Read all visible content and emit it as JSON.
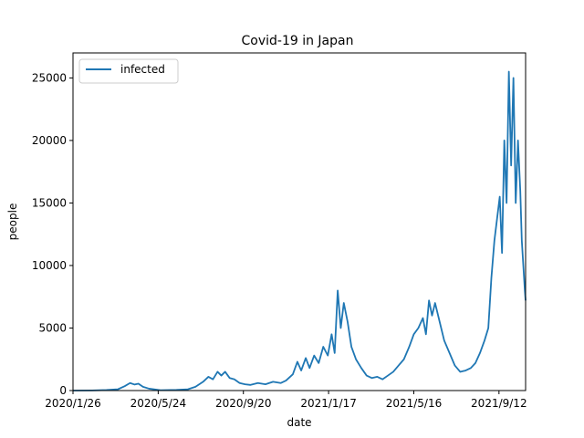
{
  "chart_data": {
    "type": "line",
    "title": "Covid-19 in Japan",
    "xlabel": "date",
    "ylabel": "people",
    "x_tick_labels": [
      "2020/1/26",
      "2020/5/24",
      "2020/9/20",
      "2021/1/17",
      "2021/5/16",
      "2021/9/12"
    ],
    "y_ticks": [
      0,
      5000,
      10000,
      15000,
      20000,
      25000
    ],
    "y_tick_labels": [
      "0",
      "5000",
      "10000",
      "15000",
      "20000",
      "25000"
    ],
    "xlim": [
      "2020-01-26",
      "2021-09-12"
    ],
    "ylim": [
      0,
      27000
    ],
    "grid": false,
    "legend": "top-left",
    "series": [
      {
        "name": "infected",
        "color": "#1f77b4",
        "points": [
          [
            "2020-01-26",
            0
          ],
          [
            "2020-02-20",
            10
          ],
          [
            "2020-03-10",
            40
          ],
          [
            "2020-03-25",
            100
          ],
          [
            "2020-04-03",
            350
          ],
          [
            "2020-04-10",
            600
          ],
          [
            "2020-04-16",
            480
          ],
          [
            "2020-04-21",
            550
          ],
          [
            "2020-04-27",
            300
          ],
          [
            "2020-05-05",
            150
          ],
          [
            "2020-05-20",
            30
          ],
          [
            "2020-06-10",
            50
          ],
          [
            "2020-06-25",
            100
          ],
          [
            "2020-07-05",
            300
          ],
          [
            "2020-07-15",
            700
          ],
          [
            "2020-07-22",
            1100
          ],
          [
            "2020-07-28",
            900
          ],
          [
            "2020-08-03",
            1500
          ],
          [
            "2020-08-08",
            1200
          ],
          [
            "2020-08-13",
            1500
          ],
          [
            "2020-08-19",
            1000
          ],
          [
            "2020-08-25",
            900
          ],
          [
            "2020-09-01",
            600
          ],
          [
            "2020-09-08",
            500
          ],
          [
            "2020-09-15",
            450
          ],
          [
            "2020-09-25",
            600
          ],
          [
            "2020-10-05",
            500
          ],
          [
            "2020-10-15",
            700
          ],
          [
            "2020-10-25",
            600
          ],
          [
            "2020-11-01",
            800
          ],
          [
            "2020-11-10",
            1300
          ],
          [
            "2020-11-16",
            2300
          ],
          [
            "2020-11-21",
            1600
          ],
          [
            "2020-11-27",
            2600
          ],
          [
            "2020-12-02",
            1800
          ],
          [
            "2020-12-08",
            2800
          ],
          [
            "2020-12-14",
            2200
          ],
          [
            "2020-12-20",
            3500
          ],
          [
            "2020-12-26",
            2800
          ],
          [
            "2020-12-31",
            4500
          ],
          [
            "2021-01-04",
            3000
          ],
          [
            "2021-01-08",
            8000
          ],
          [
            "2021-01-12",
            5000
          ],
          [
            "2021-01-16",
            7000
          ],
          [
            "2021-01-21",
            5500
          ],
          [
            "2021-01-26",
            3500
          ],
          [
            "2021-02-01",
            2500
          ],
          [
            "2021-02-08",
            1800
          ],
          [
            "2021-02-15",
            1200
          ],
          [
            "2021-02-22",
            1000
          ],
          [
            "2021-03-01",
            1100
          ],
          [
            "2021-03-08",
            900
          ],
          [
            "2021-03-15",
            1200
          ],
          [
            "2021-03-22",
            1500
          ],
          [
            "2021-03-29",
            2000
          ],
          [
            "2021-04-05",
            2500
          ],
          [
            "2021-04-12",
            3500
          ],
          [
            "2021-04-18",
            4500
          ],
          [
            "2021-04-24",
            5000
          ],
          [
            "2021-04-30",
            5800
          ],
          [
            "2021-05-04",
            4500
          ],
          [
            "2021-05-08",
            7200
          ],
          [
            "2021-05-12",
            6000
          ],
          [
            "2021-05-16",
            7000
          ],
          [
            "2021-05-22",
            5500
          ],
          [
            "2021-05-28",
            4000
          ],
          [
            "2021-06-04",
            3000
          ],
          [
            "2021-06-11",
            2000
          ],
          [
            "2021-06-18",
            1500
          ],
          [
            "2021-06-25",
            1600
          ],
          [
            "2021-07-02",
            1800
          ],
          [
            "2021-07-08",
            2200
          ],
          [
            "2021-07-14",
            3000
          ],
          [
            "2021-07-20",
            4000
          ],
          [
            "2021-07-25",
            5000
          ],
          [
            "2021-07-29",
            9000
          ],
          [
            "2021-08-02",
            12000
          ],
          [
            "2021-08-06",
            14000
          ],
          [
            "2021-08-09",
            15500
          ],
          [
            "2021-08-12",
            11000
          ],
          [
            "2021-08-15",
            20000
          ],
          [
            "2021-08-18",
            15000
          ],
          [
            "2021-08-21",
            25500
          ],
          [
            "2021-08-24",
            18000
          ],
          [
            "2021-08-27",
            25000
          ],
          [
            "2021-08-30",
            15000
          ],
          [
            "2021-09-02",
            20000
          ],
          [
            "2021-09-05",
            16000
          ],
          [
            "2021-09-07",
            12000
          ],
          [
            "2021-09-09",
            10000
          ],
          [
            "2021-09-11",
            8000
          ],
          [
            "2021-09-12",
            7200
          ]
        ]
      }
    ]
  }
}
